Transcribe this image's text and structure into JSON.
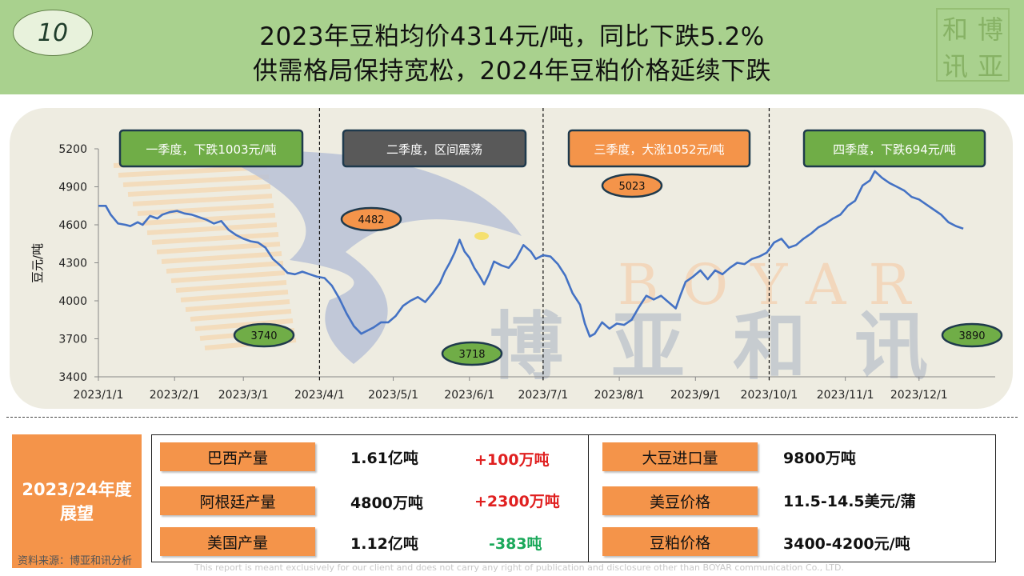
{
  "header": {
    "page_number": "10",
    "title_line1": "2023年豆粕均价4314元/吨，同比下跌5.2%",
    "title_line2": "供需格局保持宽松，2024年豆粕价格延续下跌",
    "seal_chars": [
      "和",
      "博",
      "讯",
      "亚"
    ]
  },
  "chart_data": {
    "type": "line",
    "ylabel": "豆元/吨",
    "ylim": [
      3400,
      5200
    ],
    "yticks": [
      5200,
      4900,
      4600,
      4300,
      4000,
      3700,
      3400
    ],
    "xtick_labels": [
      "2023/1/1",
      "2023/2/1",
      "2023/3/1",
      "2023/4/1",
      "2023/5/1",
      "2023/6/1",
      "2023/7/1",
      "2023/8/1",
      "2023/9/1",
      "2023/10/1",
      "2023/11/1",
      "2023/12/1"
    ],
    "line_color": "#4472c4",
    "series": [
      {
        "values": [
          [
            "2023-01-01",
            4750
          ],
          [
            "2023-01-04",
            4750
          ],
          [
            "2023-01-06",
            4680
          ],
          [
            "2023-01-09",
            4610
          ],
          [
            "2023-01-12",
            4600
          ],
          [
            "2023-01-14",
            4590
          ],
          [
            "2023-01-17",
            4620
          ],
          [
            "2023-01-19",
            4600
          ],
          [
            "2023-01-22",
            4670
          ],
          [
            "2023-01-25",
            4650
          ],
          [
            "2023-01-27",
            4680
          ],
          [
            "2023-01-30",
            4700
          ],
          [
            "2023-02-02",
            4710
          ],
          [
            "2023-02-05",
            4690
          ],
          [
            "2023-02-08",
            4680
          ],
          [
            "2023-02-11",
            4660
          ],
          [
            "2023-02-14",
            4640
          ],
          [
            "2023-02-17",
            4610
          ],
          [
            "2023-02-20",
            4630
          ],
          [
            "2023-02-23",
            4560
          ],
          [
            "2023-02-26",
            4520
          ],
          [
            "2023-03-01",
            4490
          ],
          [
            "2023-03-04",
            4470
          ],
          [
            "2023-03-07",
            4460
          ],
          [
            "2023-03-10",
            4420
          ],
          [
            "2023-03-13",
            4330
          ],
          [
            "2023-03-16",
            4280
          ],
          [
            "2023-03-19",
            4220
          ],
          [
            "2023-03-22",
            4210
          ],
          [
            "2023-03-25",
            4230
          ],
          [
            "2023-03-28",
            4210
          ],
          [
            "2023-03-31",
            4190
          ],
          [
            "2023-04-03",
            4180
          ],
          [
            "2023-04-06",
            4120
          ],
          [
            "2023-04-09",
            4020
          ],
          [
            "2023-04-12",
            3900
          ],
          [
            "2023-04-15",
            3800
          ],
          [
            "2023-04-18",
            3740
          ],
          [
            "2023-04-20",
            3760
          ],
          [
            "2023-04-23",
            3790
          ],
          [
            "2023-04-26",
            3830
          ],
          [
            "2023-04-29",
            3830
          ],
          [
            "2023-05-02",
            3880
          ],
          [
            "2023-05-05",
            3960
          ],
          [
            "2023-05-08",
            4000
          ],
          [
            "2023-05-11",
            4030
          ],
          [
            "2023-05-14",
            3990
          ],
          [
            "2023-05-17",
            4060
          ],
          [
            "2023-05-20",
            4140
          ],
          [
            "2023-05-22",
            4230
          ],
          [
            "2023-05-24",
            4300
          ],
          [
            "2023-05-26",
            4380
          ],
          [
            "2023-05-28",
            4482
          ],
          [
            "2023-05-30",
            4390
          ],
          [
            "2023-06-01",
            4340
          ],
          [
            "2023-06-03",
            4260
          ],
          [
            "2023-06-05",
            4200
          ],
          [
            "2023-06-07",
            4130
          ],
          [
            "2023-06-09",
            4210
          ],
          [
            "2023-06-11",
            4310
          ],
          [
            "2023-06-14",
            4280
          ],
          [
            "2023-06-17",
            4260
          ],
          [
            "2023-06-20",
            4330
          ],
          [
            "2023-06-23",
            4440
          ],
          [
            "2023-06-26",
            4390
          ],
          [
            "2023-06-28",
            4330
          ],
          [
            "2023-07-01",
            4360
          ],
          [
            "2023-07-04",
            4350
          ],
          [
            "2023-07-07",
            4290
          ],
          [
            "2023-07-10",
            4200
          ],
          [
            "2023-07-13",
            4060
          ],
          [
            "2023-07-16",
            3970
          ],
          [
            "2023-07-18",
            3820
          ],
          [
            "2023-07-20",
            3718
          ],
          [
            "2023-07-22",
            3740
          ],
          [
            "2023-07-25",
            3830
          ],
          [
            "2023-07-28",
            3780
          ],
          [
            "2023-07-31",
            3820
          ],
          [
            "2023-08-03",
            3810
          ],
          [
            "2023-08-06",
            3850
          ],
          [
            "2023-08-09",
            3950
          ],
          [
            "2023-08-12",
            4040
          ],
          [
            "2023-08-15",
            4010
          ],
          [
            "2023-08-18",
            4040
          ],
          [
            "2023-08-21",
            3990
          ],
          [
            "2023-08-24",
            3940
          ],
          [
            "2023-08-26",
            4050
          ],
          [
            "2023-08-28",
            4150
          ],
          [
            "2023-08-31",
            4190
          ],
          [
            "2023-09-03",
            4240
          ],
          [
            "2023-09-06",
            4170
          ],
          [
            "2023-09-09",
            4240
          ],
          [
            "2023-09-12",
            4210
          ],
          [
            "2023-09-15",
            4260
          ],
          [
            "2023-09-18",
            4300
          ],
          [
            "2023-09-21",
            4290
          ],
          [
            "2023-09-24",
            4330
          ],
          [
            "2023-09-27",
            4350
          ],
          [
            "2023-09-30",
            4380
          ],
          [
            "2023-10-03",
            4460
          ],
          [
            "2023-10-06",
            4490
          ],
          [
            "2023-10-09",
            4420
          ],
          [
            "2023-10-12",
            4440
          ],
          [
            "2023-10-15",
            4490
          ],
          [
            "2023-10-18",
            4530
          ],
          [
            "2023-10-21",
            4580
          ],
          [
            "2023-10-24",
            4610
          ],
          [
            "2023-10-27",
            4650
          ],
          [
            "2023-10-30",
            4680
          ],
          [
            "2023-11-02",
            4750
          ],
          [
            "2023-11-05",
            4790
          ],
          [
            "2023-11-08",
            4910
          ],
          [
            "2023-11-11",
            4950
          ],
          [
            "2023-11-13",
            5023
          ],
          [
            "2023-11-16",
            4970
          ],
          [
            "2023-11-19",
            4930
          ],
          [
            "2023-11-22",
            4900
          ],
          [
            "2023-11-25",
            4870
          ],
          [
            "2023-11-28",
            4820
          ],
          [
            "2023-12-01",
            4800
          ],
          [
            "2023-12-04",
            4760
          ],
          [
            "2023-12-07",
            4720
          ],
          [
            "2023-12-10",
            4680
          ],
          [
            "2023-12-13",
            4620
          ],
          [
            "2023-12-16",
            4590
          ],
          [
            "2023-12-19",
            4570
          ]
        ]
      }
    ],
    "quarter_labels": [
      {
        "text": "一季度，下跌1003元/吨",
        "fill": "#70ad47",
        "text_color": "#ffffff"
      },
      {
        "text": "二季度，区间震荡",
        "fill": "#595959",
        "text_color": "#ffffff"
      },
      {
        "text": "三季度，大涨1052元/吨",
        "fill": "#f4944a",
        "text_color": "#ffffff"
      },
      {
        "text": "四季度，下跌694元/吨",
        "fill": "#70ad47",
        "text_color": "#ffffff"
      }
    ],
    "callouts": [
      {
        "label": "3740",
        "fill": "#70ad47"
      },
      {
        "label": "4482",
        "fill": "#f4944a"
      },
      {
        "label": "3718",
        "fill": "#70ad47"
      },
      {
        "label": "5023",
        "fill": "#f4944a"
      },
      {
        "label": "3890",
        "fill": "#70ad47"
      }
    ],
    "watermark_text": "BOYAR",
    "watermark_cn": "博亚和讯"
  },
  "outlook": {
    "label_line1": "2023/24年度",
    "label_line2": "展望",
    "rows_left": [
      {
        "name": "巴西产量",
        "value": "1.61亿吨",
        "change": "+100万吨",
        "direction": "up"
      },
      {
        "name": "阿根廷产量",
        "value": "4800万吨",
        "change": "+2300万吨",
        "direction": "up"
      },
      {
        "name": "美国产量",
        "value": "1.12亿吨",
        "change": "-383吨",
        "direction": "down"
      }
    ],
    "rows_right": [
      {
        "name": "大豆进口量",
        "value": "9800万吨"
      },
      {
        "name": "美豆价格",
        "value": "11.5-14.5美元/蒲"
      },
      {
        "name": "豆粕价格",
        "value": "3400-4200元/吨"
      }
    ]
  },
  "footer": {
    "source": "资料来源：博亚和讯分析",
    "disclaimer": "This report is meant exclusively for our client and does not carry any right of publication and disclosure other than BOYAR communication Co., LTD."
  }
}
